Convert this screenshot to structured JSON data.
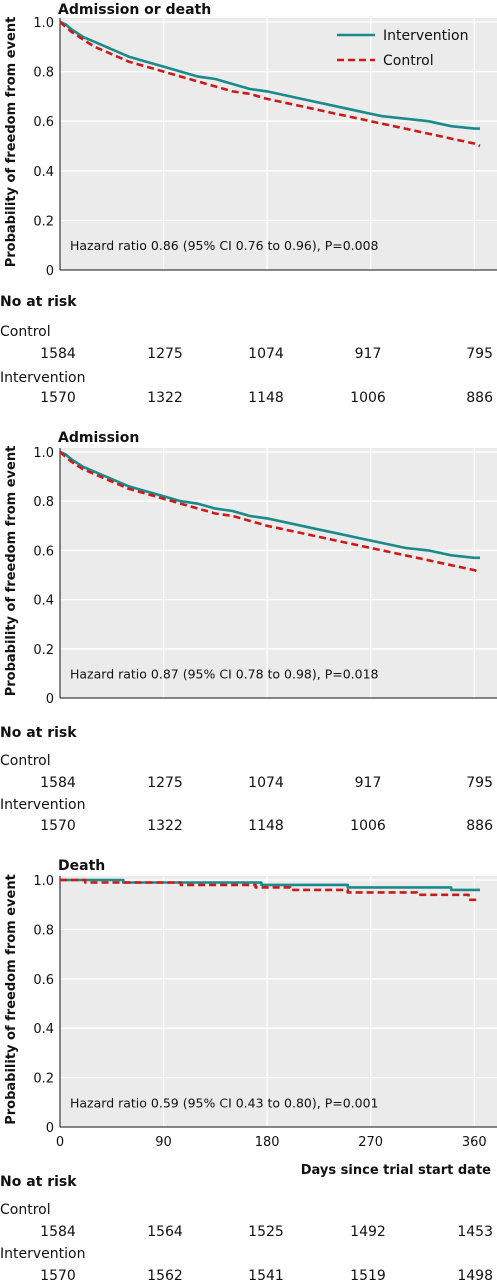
{
  "legend": {
    "intervention": "Intervention",
    "control": "Control"
  },
  "colors": {
    "intervention": "#1a8a8a",
    "control": "#cc1a1a",
    "panel_bg": "#ebebeb",
    "grid": "#ffffff"
  },
  "y_axis_label": "Probability of freedom from event",
  "x_axis_label": "Days since trial start date",
  "at_risk_heading": "No at risk",
  "chart_data": [
    {
      "type": "line",
      "title": "Admission or death",
      "ylabel": "Probability of freedom from event",
      "ylim": [
        0,
        1.0
      ],
      "yticks": [
        "0",
        "0.2",
        "0.4",
        "0.6",
        "0.8",
        "1.0"
      ],
      "xlim": [
        0,
        365
      ],
      "annotation": "Hazard ratio 0.86 (95% CI 0.76 to 0.96), P=0.008",
      "legend_position": "top-right",
      "grid": true,
      "series": [
        {
          "name": "Intervention",
          "style": "solid",
          "x": [
            0,
            5,
            10,
            20,
            30,
            45,
            60,
            75,
            90,
            105,
            120,
            135,
            150,
            165,
            180,
            200,
            220,
            240,
            260,
            280,
            300,
            320,
            340,
            360,
            365
          ],
          "y": [
            1.0,
            0.99,
            0.97,
            0.94,
            0.92,
            0.89,
            0.86,
            0.84,
            0.82,
            0.8,
            0.78,
            0.77,
            0.75,
            0.73,
            0.72,
            0.7,
            0.68,
            0.66,
            0.64,
            0.62,
            0.61,
            0.6,
            0.58,
            0.57,
            0.57
          ]
        },
        {
          "name": "Control",
          "style": "dashed",
          "x": [
            0,
            5,
            10,
            20,
            30,
            45,
            60,
            75,
            90,
            105,
            120,
            135,
            150,
            165,
            180,
            200,
            220,
            240,
            260,
            280,
            300,
            320,
            340,
            360,
            365
          ],
          "y": [
            1.0,
            0.98,
            0.96,
            0.93,
            0.9,
            0.87,
            0.84,
            0.82,
            0.8,
            0.78,
            0.76,
            0.74,
            0.72,
            0.71,
            0.69,
            0.67,
            0.65,
            0.63,
            0.61,
            0.59,
            0.57,
            0.55,
            0.53,
            0.51,
            0.5
          ]
        }
      ],
      "at_risk": [
        {
          "label": "Control",
          "values": [
            "1584",
            "1275",
            "1074",
            "917",
            "795"
          ]
        },
        {
          "label": "Intervention",
          "values": [
            "1570",
            "1322",
            "1148",
            "1006",
            "886"
          ]
        }
      ]
    },
    {
      "type": "line",
      "title": "Admission",
      "ylabel": "Probability of freedom from event",
      "ylim": [
        0,
        1.0
      ],
      "yticks": [
        "0",
        "0.2",
        "0.4",
        "0.6",
        "0.8",
        "1.0"
      ],
      "xlim": [
        0,
        365
      ],
      "annotation": "Hazard ratio 0.87 (95% CI 0.78 to 0.98), P=0.018",
      "grid": true,
      "series": [
        {
          "name": "Intervention",
          "style": "solid",
          "x": [
            0,
            5,
            10,
            20,
            30,
            45,
            60,
            75,
            90,
            105,
            120,
            135,
            150,
            165,
            180,
            200,
            220,
            240,
            260,
            280,
            300,
            320,
            340,
            360,
            365
          ],
          "y": [
            1.0,
            0.99,
            0.97,
            0.94,
            0.92,
            0.89,
            0.86,
            0.84,
            0.82,
            0.8,
            0.79,
            0.77,
            0.76,
            0.74,
            0.73,
            0.71,
            0.69,
            0.67,
            0.65,
            0.63,
            0.61,
            0.6,
            0.58,
            0.57,
            0.57
          ]
        },
        {
          "name": "Control",
          "style": "dashed",
          "x": [
            0,
            5,
            10,
            20,
            30,
            45,
            60,
            75,
            90,
            105,
            120,
            135,
            150,
            165,
            180,
            200,
            220,
            240,
            260,
            280,
            300,
            320,
            340,
            360,
            365
          ],
          "y": [
            1.0,
            0.98,
            0.96,
            0.93,
            0.91,
            0.88,
            0.85,
            0.83,
            0.81,
            0.79,
            0.77,
            0.75,
            0.74,
            0.72,
            0.7,
            0.68,
            0.66,
            0.64,
            0.62,
            0.6,
            0.58,
            0.56,
            0.54,
            0.52,
            0.51
          ]
        }
      ],
      "at_risk": [
        {
          "label": "Control",
          "values": [
            "1584",
            "1275",
            "1074",
            "917",
            "795"
          ]
        },
        {
          "label": "Intervention",
          "values": [
            "1570",
            "1322",
            "1148",
            "1006",
            "886"
          ]
        }
      ]
    },
    {
      "type": "line",
      "title": "Death",
      "ylabel": "Probability of freedom from event",
      "xlabel": "Days since trial start date",
      "ylim": [
        0,
        1.0
      ],
      "yticks": [
        "0",
        "0.2",
        "0.4",
        "0.6",
        "0.8",
        "1.0"
      ],
      "xlim": [
        0,
        365
      ],
      "xticks": [
        "0",
        "90",
        "180",
        "270",
        "360"
      ],
      "annotation": "Hazard ratio 0.59 (95% CI 0.43 to 0.80), P=0.001",
      "grid": true,
      "series": [
        {
          "name": "Intervention",
          "style": "solid",
          "step": true,
          "x": [
            0,
            55,
            55,
            175,
            175,
            250,
            250,
            340,
            340,
            365
          ],
          "y": [
            1.0,
            1.0,
            0.99,
            0.99,
            0.98,
            0.98,
            0.97,
            0.97,
            0.96,
            0.96
          ]
        },
        {
          "name": "Control",
          "style": "dashed",
          "step": true,
          "x": [
            0,
            22,
            22,
            105,
            105,
            170,
            170,
            200,
            200,
            250,
            250,
            310,
            310,
            355,
            355,
            365
          ],
          "y": [
            1.0,
            1.0,
            0.99,
            0.99,
            0.98,
            0.98,
            0.97,
            0.97,
            0.96,
            0.96,
            0.95,
            0.95,
            0.94,
            0.94,
            0.92,
            0.92
          ]
        }
      ],
      "at_risk": [
        {
          "label": "Control",
          "values": [
            "1584",
            "1564",
            "1525",
            "1492",
            "1453"
          ]
        },
        {
          "label": "Intervention",
          "values": [
            "1570",
            "1562",
            "1541",
            "1519",
            "1498"
          ]
        }
      ]
    }
  ]
}
